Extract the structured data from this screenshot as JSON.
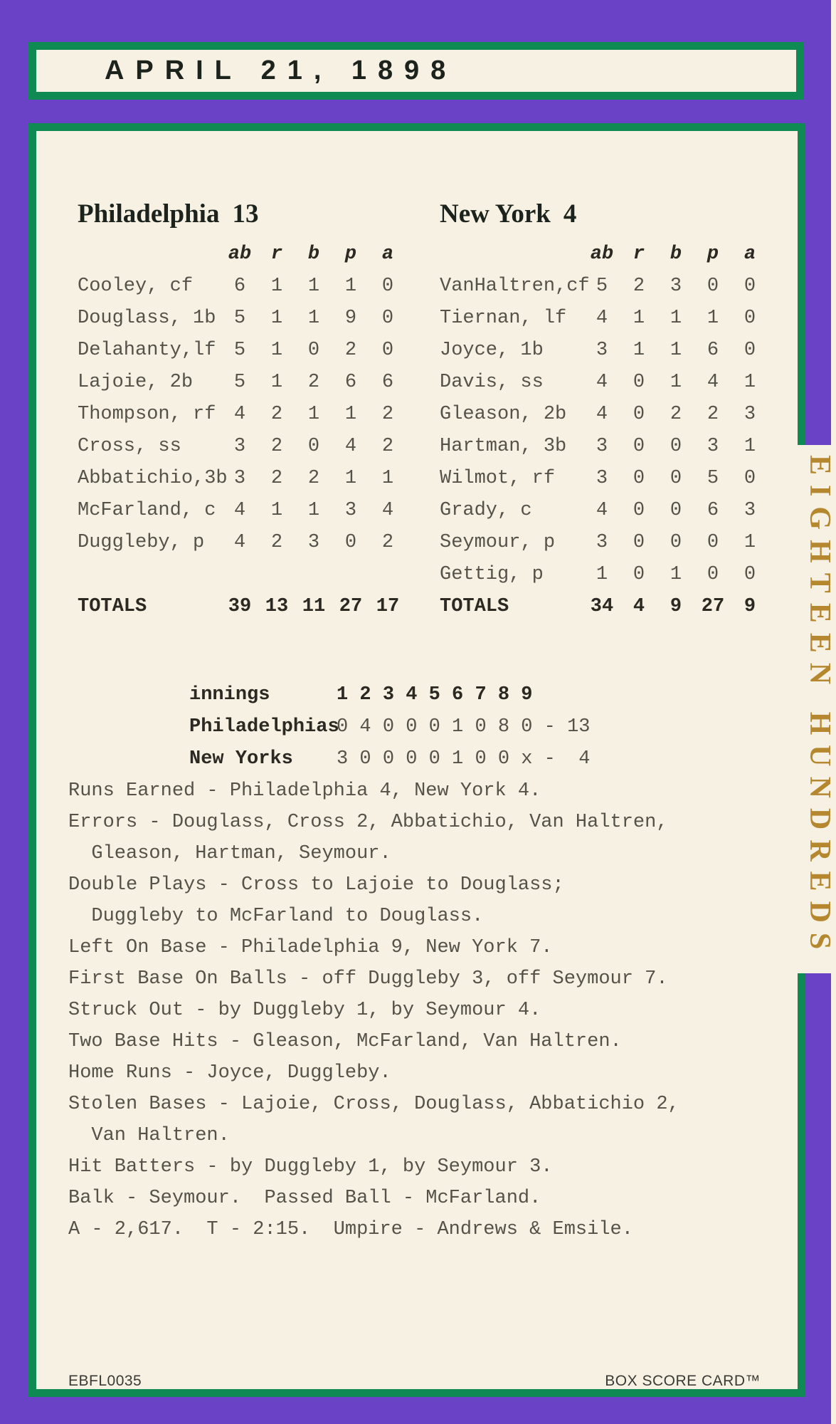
{
  "title": "APRIL 21, 1898",
  "colors": {
    "purple": "#6a42c6",
    "green": "#0f8a52",
    "cream": "#f6f1e2",
    "gold": "#b5872e",
    "ink": "#1c231d",
    "typewriter_text": "#55524a"
  },
  "teams": [
    {
      "name": "Philadelphia",
      "score": "13",
      "columns": [
        "ab",
        "r",
        "b",
        "p",
        "a"
      ],
      "players": [
        {
          "name": "Cooley, cf",
          "stats": [
            "6",
            "1",
            "1",
            "1",
            "0"
          ]
        },
        {
          "name": "Douglass, 1b",
          "stats": [
            "5",
            "1",
            "1",
            "9",
            "0"
          ]
        },
        {
          "name": "Delahanty,lf",
          "stats": [
            "5",
            "1",
            "0",
            "2",
            "0"
          ]
        },
        {
          "name": "Lajoie, 2b",
          "stats": [
            "5",
            "1",
            "2",
            "6",
            "6"
          ]
        },
        {
          "name": "Thompson, rf",
          "stats": [
            "4",
            "2",
            "1",
            "1",
            "2"
          ]
        },
        {
          "name": "Cross, ss",
          "stats": [
            "3",
            "2",
            "0",
            "4",
            "2"
          ]
        },
        {
          "name": "Abbatichio,3b",
          "stats": [
            "3",
            "2",
            "2",
            "1",
            "1"
          ]
        },
        {
          "name": "McFarland, c",
          "stats": [
            "4",
            "1",
            "1",
            "3",
            "4"
          ]
        },
        {
          "name": "Duggleby, p",
          "stats": [
            "4",
            "2",
            "3",
            "0",
            "2"
          ]
        }
      ],
      "totals_label": "TOTALS",
      "totals": [
        "39",
        "13",
        "11",
        "27",
        "17"
      ]
    },
    {
      "name": "New York",
      "score": "4",
      "columns": [
        "ab",
        "r",
        "b",
        "p",
        "a"
      ],
      "players": [
        {
          "name": "VanHaltren,cf",
          "stats": [
            "5",
            "2",
            "3",
            "0",
            "0"
          ]
        },
        {
          "name": "Tiernan, lf",
          "stats": [
            "4",
            "1",
            "1",
            "1",
            "0"
          ]
        },
        {
          "name": "Joyce, 1b",
          "stats": [
            "3",
            "1",
            "1",
            "6",
            "0"
          ]
        },
        {
          "name": "Davis, ss",
          "stats": [
            "4",
            "0",
            "1",
            "4",
            "1"
          ]
        },
        {
          "name": "Gleason, 2b",
          "stats": [
            "4",
            "0",
            "2",
            "2",
            "3"
          ]
        },
        {
          "name": "Hartman, 3b",
          "stats": [
            "3",
            "0",
            "0",
            "3",
            "1"
          ]
        },
        {
          "name": "Wilmot, rf",
          "stats": [
            "3",
            "0",
            "0",
            "5",
            "0"
          ]
        },
        {
          "name": "Grady, c",
          "stats": [
            "4",
            "0",
            "0",
            "6",
            "3"
          ]
        },
        {
          "name": "Seymour, p",
          "stats": [
            "3",
            "0",
            "0",
            "0",
            "1"
          ]
        },
        {
          "name": "Gettig, p",
          "stats": [
            "1",
            "0",
            "1",
            "0",
            "0"
          ]
        }
      ],
      "totals_label": "TOTALS",
      "totals": [
        "34",
        "4",
        "9",
        "27",
        "9"
      ]
    }
  ],
  "linescore": {
    "innings_label": "innings",
    "innings_numbers": "1 2 3 4 5 6 7 8 9",
    "rows": [
      {
        "team": "Philadelphias",
        "scores": "0 4 0 0 0 1 0 8 0 - 13"
      },
      {
        "team": "New Yorks",
        "scores": "3 0 0 0 0 1 0 0 x -  4"
      }
    ]
  },
  "summary_lines": [
    "Runs Earned - Philadelphia 4, New York 4.",
    "Errors - Douglass, Cross 2, Abbatichio, Van Haltren,",
    "  Gleason, Hartman, Seymour.",
    "Double Plays - Cross to Lajoie to Douglass;",
    "  Duggleby to McFarland to Douglass.",
    "Left On Base - Philadelphia 9, New York 7.",
    "First Base On Balls - off Duggleby 3, off Seymour 7.",
    "Struck Out - by Duggleby 1, by Seymour 4.",
    "Two Base Hits - Gleason, McFarland, Van Haltren.",
    "Home Runs - Joyce, Duggleby.",
    "Stolen Bases - Lajoie, Cross, Douglass, Abbatichio 2,",
    "  Van Haltren.",
    "Hit Batters - by Duggleby 1, by Seymour 3.",
    "Balk - Seymour.  Passed Ball - McFarland.",
    "A - 2,617.  T - 2:15.  Umpire - Andrews & Emsile."
  ],
  "footer": {
    "code": "EBFL0035",
    "brand": "BOX SCORE CARD™"
  },
  "side_text": "EIGHTEEN HUNDREDS"
}
